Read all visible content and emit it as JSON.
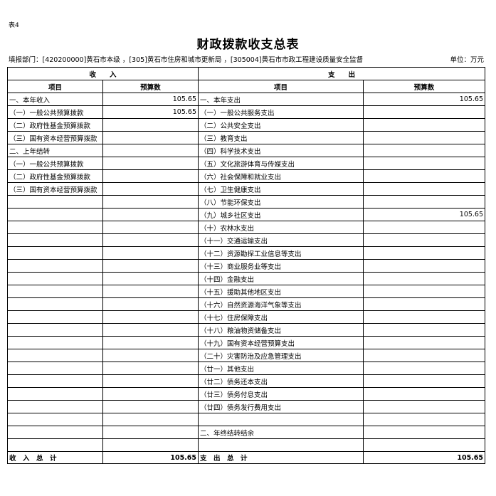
{
  "table_no": "表4",
  "title": "财政拨款收支总表",
  "dept": "填报部门：[420200000]黄石市本级 ，[305]黄石市住房和城市更新局 ，[305004]黄石市市政工程建设质量安全监督",
  "unit": "单位：万元",
  "headers": {
    "income": "收　　入",
    "expense": "支　　出",
    "item": "项目",
    "budget": "预算数"
  },
  "income_rows": [
    {
      "label": "一、本年收入",
      "value": "105.65"
    },
    {
      "label": "（一）一般公共预算拨款",
      "value": "105.65"
    },
    {
      "label": "（二）政府性基金预算拨款",
      "value": ""
    },
    {
      "label": "（三）国有资本经营预算拨款",
      "value": ""
    },
    {
      "label": "二、上年结转",
      "value": ""
    },
    {
      "label": "（一）一般公共预算拨款",
      "value": ""
    },
    {
      "label": "（二）政府性基金预算拨款",
      "value": ""
    },
    {
      "label": "（三）国有资本经营预算拨款",
      "value": ""
    }
  ],
  "expense_rows": [
    {
      "label": "一、本年支出",
      "value": "105.65"
    },
    {
      "label": "（一）一般公共服务支出",
      "value": ""
    },
    {
      "label": "（二）公共安全支出",
      "value": ""
    },
    {
      "label": "（三）教育支出",
      "value": ""
    },
    {
      "label": "（四）科学技术支出",
      "value": ""
    },
    {
      "label": "（五）文化旅游体育与传媒支出",
      "value": ""
    },
    {
      "label": "（六）社会保障和就业支出",
      "value": ""
    },
    {
      "label": "（七）卫生健康支出",
      "value": ""
    },
    {
      "label": "（八）节能环保支出",
      "value": ""
    },
    {
      "label": "（九）城乡社区支出",
      "value": "105.65"
    },
    {
      "label": "（十）农林水支出",
      "value": ""
    },
    {
      "label": "（十一）交通运输支出",
      "value": ""
    },
    {
      "label": "（十二）资源勘探工业信息等支出",
      "value": ""
    },
    {
      "label": "（十三）商业服务业等支出",
      "value": ""
    },
    {
      "label": "（十四）金融支出",
      "value": ""
    },
    {
      "label": "（十五）援助其他地区支出",
      "value": ""
    },
    {
      "label": "（十六）自然资源海洋气象等支出",
      "value": ""
    },
    {
      "label": "（十七）住房保障支出",
      "value": ""
    },
    {
      "label": "（十八）粮油物资储备支出",
      "value": ""
    },
    {
      "label": "（十九）国有资本经营预算支出",
      "value": ""
    },
    {
      "label": "（二十）灾害防治及应急管理支出",
      "value": ""
    },
    {
      "label": "（廿一）其他支出",
      "value": ""
    },
    {
      "label": "（廿二）债务还本支出",
      "value": ""
    },
    {
      "label": "（廿三）债务付息支出",
      "value": ""
    },
    {
      "label": "（廿四）债务发行费用支出",
      "value": ""
    },
    {
      "label": "",
      "value": ""
    },
    {
      "label": "二、年终结转结余",
      "value": ""
    },
    {
      "label": "",
      "value": ""
    }
  ],
  "totals": {
    "income_label": "收　入　总　计",
    "income_value": "105.65",
    "expense_label": "支　出　总　计",
    "expense_value": "105.65"
  }
}
